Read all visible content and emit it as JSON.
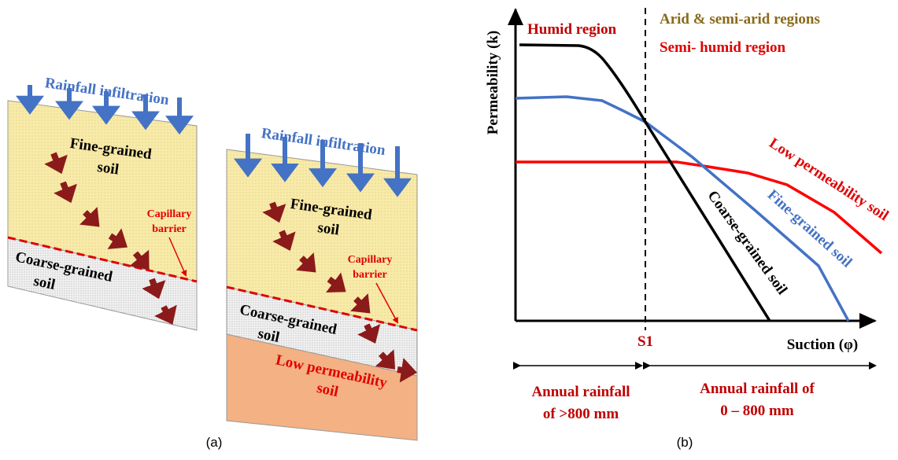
{
  "panel_a": {
    "caption": "(a)",
    "left_block": {
      "rainfall": "Rainfall infiltration",
      "fine_soil": [
        "Fine-grained",
        "soil"
      ],
      "barrier": [
        "Capillary",
        "barrier"
      ],
      "coarse_soil": [
        "Coarse-grained",
        "soil"
      ]
    },
    "right_block": {
      "rainfall": "Rainfall infiltration",
      "fine_soil": [
        "Fine-grained",
        "soil"
      ],
      "barrier": [
        "Capillary",
        "barrier"
      ],
      "coarse_soil": [
        "Coarse-grained",
        "soil"
      ],
      "low_soil": [
        "Low permeability",
        "soil"
      ]
    }
  },
  "panel_b": {
    "caption": "(b)",
    "y_axis": "Permeability (k)",
    "x_axis": "Suction (φ)",
    "threshold": "S1",
    "regions": {
      "humid": "Humid region",
      "arid": "Arid & semi-arid regions",
      "semi_humid": "Semi- humid region"
    },
    "curves": {
      "low": "Low permeability soil",
      "fine": "Fine-grained soil",
      "coarse": "Coarse-grained soil"
    },
    "rainfall": {
      "high": [
        "Annual rainfall",
        "of >800 mm"
      ],
      "low": [
        "Annual rainfall of",
        "0 – 800 mm"
      ]
    }
  }
}
